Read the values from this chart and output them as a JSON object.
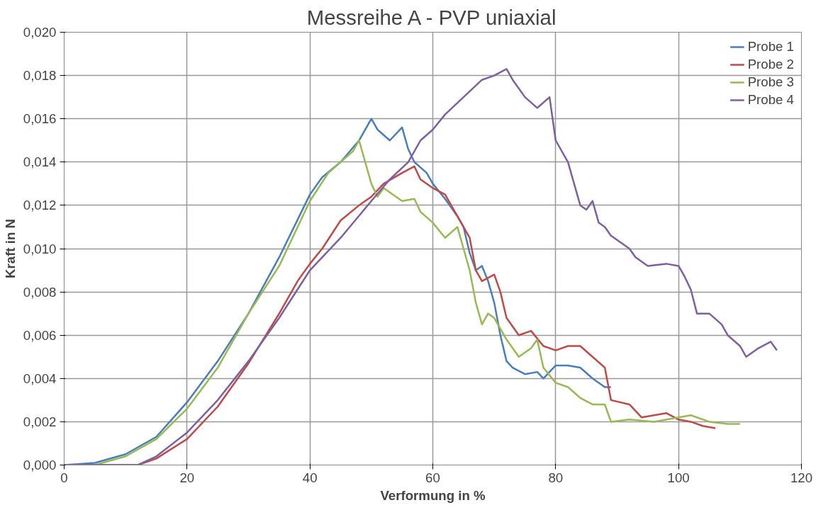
{
  "chart_data": {
    "type": "line",
    "title": "Messreihe A - PVP uniaxial",
    "xlabel": "Verformung in %",
    "ylabel": "Kraft in N",
    "xlim": [
      0,
      120
    ],
    "xticks": [
      0,
      20,
      40,
      60,
      80,
      100,
      120
    ],
    "ylim": [
      0,
      0.02
    ],
    "yticks": [
      {
        "value": 0,
        "label": "0,000"
      },
      {
        "value": 0.002,
        "label": "0,002"
      },
      {
        "value": 0.004,
        "label": "0,004"
      },
      {
        "value": 0.006,
        "label": "0,006"
      },
      {
        "value": 0.008,
        "label": "0,008"
      },
      {
        "value": 0.01,
        "label": "0,010"
      },
      {
        "value": 0.012,
        "label": "0,012"
      },
      {
        "value": 0.014,
        "label": "0,014"
      },
      {
        "value": 0.016,
        "label": "0,016"
      },
      {
        "value": 0.018,
        "label": "0,018"
      },
      {
        "value": 0.02,
        "label": "0,020"
      }
    ],
    "grid": true,
    "legend": "top right",
    "marker": "none",
    "line_style": "solid",
    "series": [
      {
        "name": "Probe 1",
        "color": "#4a7ebb",
        "x": [
          0,
          5,
          10,
          15,
          20,
          25,
          30,
          35,
          40,
          42,
          45,
          48,
          50,
          51,
          53,
          55,
          56,
          57,
          59,
          60,
          62,
          64,
          65,
          66,
          67,
          68,
          69,
          70,
          71,
          72,
          73,
          75,
          77,
          78,
          80,
          82,
          84,
          86,
          88,
          89
        ],
        "values": [
          0,
          0.0001,
          0.0005,
          0.0013,
          0.0029,
          0.0048,
          0.007,
          0.0096,
          0.0125,
          0.0133,
          0.014,
          0.015,
          0.016,
          0.0155,
          0.015,
          0.0156,
          0.0146,
          0.014,
          0.0135,
          0.013,
          0.0123,
          0.0115,
          0.011,
          0.0098,
          0.009,
          0.0092,
          0.0085,
          0.0075,
          0.006,
          0.0048,
          0.0045,
          0.0042,
          0.0043,
          0.004,
          0.0046,
          0.0046,
          0.0045,
          0.004,
          0.0036,
          0.0036
        ]
      },
      {
        "name": "Probe 2",
        "color": "#be4b48",
        "x": [
          0,
          12,
          15,
          20,
          25,
          30,
          35,
          38,
          40,
          42,
          45,
          48,
          50,
          52,
          55,
          57,
          58,
          60,
          62,
          64,
          66,
          67,
          68,
          70,
          71,
          72,
          74,
          76,
          78,
          80,
          82,
          84,
          86,
          88,
          89,
          92,
          94,
          98,
          100,
          102,
          104,
          106
        ],
        "values": [
          0,
          0,
          0.0003,
          0.0012,
          0.0027,
          0.0047,
          0.007,
          0.0085,
          0.0093,
          0.01,
          0.0113,
          0.012,
          0.0124,
          0.013,
          0.0135,
          0.0138,
          0.0132,
          0.0128,
          0.0125,
          0.0115,
          0.0105,
          0.009,
          0.0085,
          0.0088,
          0.008,
          0.0068,
          0.006,
          0.0062,
          0.0055,
          0.0053,
          0.0055,
          0.0055,
          0.005,
          0.0045,
          0.003,
          0.0028,
          0.0022,
          0.0024,
          0.0021,
          0.002,
          0.0018,
          0.0017
        ]
      },
      {
        "name": "Probe 3",
        "color": "#98b954",
        "x": [
          0,
          5,
          10,
          15,
          20,
          25,
          30,
          35,
          40,
          43,
          45,
          47,
          48,
          49,
          50,
          51,
          52,
          55,
          57,
          58,
          60,
          62,
          64,
          65,
          66,
          67,
          68,
          69,
          70,
          72,
          74,
          76,
          77,
          78,
          80,
          82,
          84,
          86,
          88,
          89,
          92,
          96,
          100,
          102,
          105,
          108,
          110
        ],
        "values": [
          0,
          0,
          0.0004,
          0.0012,
          0.0026,
          0.0045,
          0.007,
          0.0092,
          0.0122,
          0.0135,
          0.014,
          0.0145,
          0.015,
          0.014,
          0.013,
          0.0124,
          0.0128,
          0.0122,
          0.0123,
          0.0117,
          0.0112,
          0.0105,
          0.011,
          0.01,
          0.009,
          0.0075,
          0.0065,
          0.007,
          0.0068,
          0.0058,
          0.005,
          0.0054,
          0.0058,
          0.0045,
          0.0038,
          0.0036,
          0.0031,
          0.0028,
          0.0028,
          0.002,
          0.0021,
          0.002,
          0.0022,
          0.0023,
          0.002,
          0.0019,
          0.0019
        ]
      },
      {
        "name": "Probe 4",
        "color": "#7d60a0",
        "x": [
          0,
          12,
          15,
          20,
          25,
          30,
          35,
          40,
          45,
          50,
          53,
          56,
          58,
          60,
          62,
          65,
          68,
          70,
          72,
          73,
          75,
          77,
          79,
          80,
          82,
          83,
          84,
          85,
          86,
          87,
          88,
          89,
          90,
          92,
          93,
          95,
          98,
          100,
          101,
          102,
          103,
          105,
          107,
          108,
          110,
          111,
          113,
          115,
          116
        ],
        "values": [
          0,
          0,
          0.0004,
          0.0015,
          0.003,
          0.0048,
          0.0068,
          0.009,
          0.0105,
          0.0122,
          0.0132,
          0.014,
          0.015,
          0.0155,
          0.0162,
          0.017,
          0.0178,
          0.018,
          0.0183,
          0.0178,
          0.017,
          0.0165,
          0.017,
          0.015,
          0.014,
          0.013,
          0.012,
          0.0118,
          0.0122,
          0.0112,
          0.011,
          0.0106,
          0.0104,
          0.01,
          0.0096,
          0.0092,
          0.0093,
          0.0092,
          0.0087,
          0.0081,
          0.007,
          0.007,
          0.0065,
          0.006,
          0.0055,
          0.005,
          0.0054,
          0.0057,
          0.0053
        ]
      }
    ]
  }
}
